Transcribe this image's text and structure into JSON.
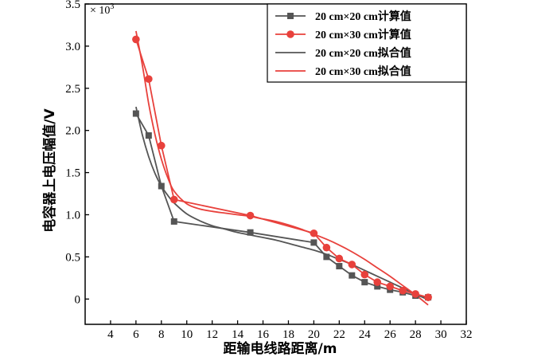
{
  "chart_data": {
    "type": "line",
    "xlabel": "距输电线路距离/m",
    "ylabel": "电容器上电压幅值/V",
    "y_multiplier_label": "× 10",
    "y_multiplier_exp": "3",
    "xlim": [
      2,
      32
    ],
    "ylim": [
      -0.3,
      3.5
    ],
    "xticks": [
      "4",
      "6",
      "8",
      "10",
      "12",
      "14",
      "16",
      "18",
      "20",
      "22",
      "24",
      "26",
      "28",
      "30",
      "32"
    ],
    "yticks": [
      "0",
      "0.5",
      "1.0",
      "1.5",
      "2.0",
      "2.5",
      "3.0",
      "3.5"
    ],
    "legend_position": "top-right",
    "series": [
      {
        "name": "20 cm×20 cm计算值",
        "kind": "points",
        "marker": "square",
        "color": "#555555",
        "x": [
          6,
          7,
          8,
          9,
          15,
          20,
          21,
          22,
          23,
          24,
          25,
          26,
          27,
          28,
          29
        ],
        "y": [
          2.2,
          1.94,
          1.34,
          0.92,
          0.79,
          0.67,
          0.5,
          0.39,
          0.28,
          0.2,
          0.15,
          0.11,
          0.08,
          0.04,
          0.02
        ]
      },
      {
        "name": "20 cm×30 cm计算值",
        "kind": "points",
        "marker": "circle",
        "color": "#e8413c",
        "x": [
          6,
          7,
          8,
          9,
          15,
          20,
          21,
          22,
          23,
          24,
          25,
          26,
          27,
          28,
          29
        ],
        "y": [
          3.08,
          2.61,
          1.82,
          1.18,
          0.99,
          0.78,
          0.61,
          0.48,
          0.41,
          0.29,
          0.2,
          0.15,
          0.1,
          0.06,
          0.02
        ]
      },
      {
        "name": "20 cm×20 cm拟合值",
        "kind": "fit",
        "color": "#555555",
        "x": [
          6,
          6.5,
          7,
          7.5,
          8,
          8.5,
          9,
          10,
          11,
          12,
          13,
          14,
          15,
          16,
          17,
          18,
          19,
          20,
          21,
          22,
          23,
          24,
          25,
          26,
          27,
          28,
          29
        ],
        "y": [
          2.28,
          1.95,
          1.69,
          1.49,
          1.34,
          1.23,
          1.14,
          1.01,
          0.93,
          0.87,
          0.83,
          0.79,
          0.76,
          0.73,
          0.7,
          0.66,
          0.62,
          0.58,
          0.53,
          0.47,
          0.41,
          0.34,
          0.27,
          0.2,
          0.13,
          0.06,
          -0.01
        ]
      },
      {
        "name": "20 cm×30 cm拟合值",
        "kind": "fit",
        "color": "#e8413c",
        "x": [
          6,
          6.5,
          7,
          7.5,
          8,
          8.5,
          9,
          10,
          11,
          12,
          13,
          14,
          15,
          16,
          17,
          18,
          19,
          20,
          21,
          22,
          23,
          24,
          25,
          26,
          27,
          28,
          29
        ],
        "y": [
          3.18,
          2.78,
          2.32,
          1.95,
          1.66,
          1.44,
          1.28,
          1.13,
          1.07,
          1.04,
          1.02,
          1.0,
          0.98,
          0.95,
          0.92,
          0.88,
          0.83,
          0.77,
          0.71,
          0.64,
          0.56,
          0.47,
          0.37,
          0.27,
          0.16,
          0.05,
          -0.07
        ]
      }
    ]
  }
}
